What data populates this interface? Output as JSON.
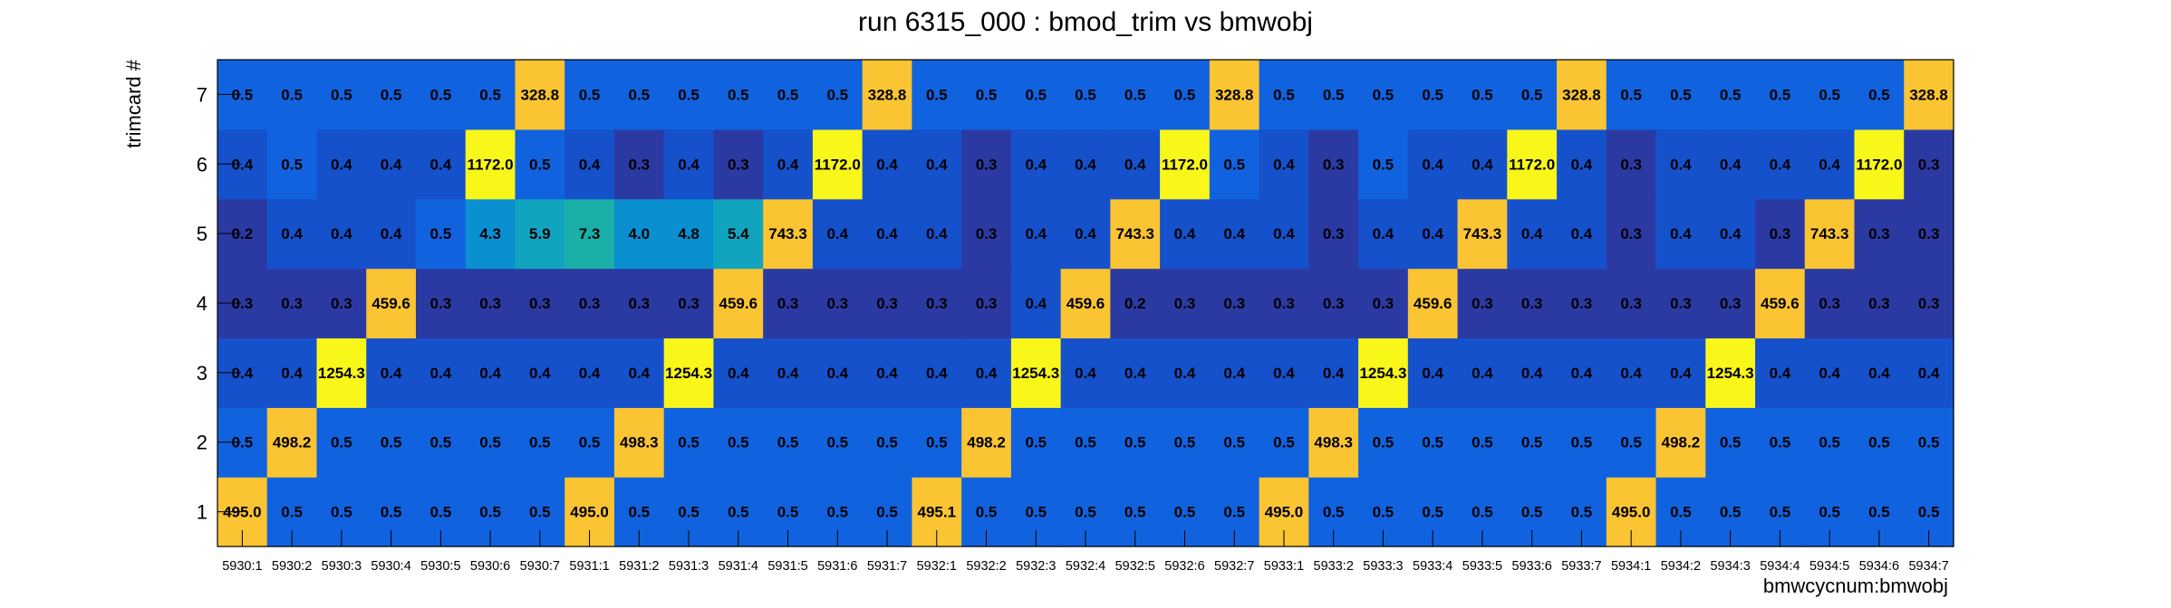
{
  "chart_data": {
    "type": "heatmap",
    "title": "run 6315_000 : bmod_trim vs bmwobj",
    "xlabel": "bmwcycnum:bmwobj",
    "ylabel": "trimcard #",
    "x_categories": [
      "5930:1",
      "5930:2",
      "5930:3",
      "5930:4",
      "5930:5",
      "5930:6",
      "5930:7",
      "5931:1",
      "5931:2",
      "5931:3",
      "5931:4",
      "5931:5",
      "5931:6",
      "5931:7",
      "5932:1",
      "5932:2",
      "5932:3",
      "5932:4",
      "5932:5",
      "5932:6",
      "5932:7",
      "5933:1",
      "5933:2",
      "5933:3",
      "5933:4",
      "5933:5",
      "5933:6",
      "5933:7",
      "5934:1",
      "5934:2",
      "5934:3",
      "5934:4",
      "5934:5",
      "5934:6",
      "5934:7"
    ],
    "y_categories": [
      "1",
      "2",
      "3",
      "4",
      "5",
      "6",
      "7"
    ],
    "values": [
      [
        "495.0",
        "0.5",
        "0.5",
        "0.5",
        "0.5",
        "0.5",
        "0.5",
        "495.0",
        "0.5",
        "0.5",
        "0.5",
        "0.5",
        "0.5",
        "0.5",
        "495.1",
        "0.5",
        "0.5",
        "0.5",
        "0.5",
        "0.5",
        "0.5",
        "495.0",
        "0.5",
        "0.5",
        "0.5",
        "0.5",
        "0.5",
        "0.5",
        "495.0",
        "0.5",
        "0.5",
        "0.5",
        "0.5",
        "0.5",
        "0.5"
      ],
      [
        "0.5",
        "498.2",
        "0.5",
        "0.5",
        "0.5",
        "0.5",
        "0.5",
        "0.5",
        "498.3",
        "0.5",
        "0.5",
        "0.5",
        "0.5",
        "0.5",
        "0.5",
        "498.2",
        "0.5",
        "0.5",
        "0.5",
        "0.5",
        "0.5",
        "0.5",
        "498.3",
        "0.5",
        "0.5",
        "0.5",
        "0.5",
        "0.5",
        "0.5",
        "498.2",
        "0.5",
        "0.5",
        "0.5",
        "0.5",
        "0.5"
      ],
      [
        "0.4",
        "0.4",
        "1254.3",
        "0.4",
        "0.4",
        "0.4",
        "0.4",
        "0.4",
        "0.4",
        "1254.3",
        "0.4",
        "0.4",
        "0.4",
        "0.4",
        "0.4",
        "0.4",
        "1254.3",
        "0.4",
        "0.4",
        "0.4",
        "0.4",
        "0.4",
        "0.4",
        "1254.3",
        "0.4",
        "0.4",
        "0.4",
        "0.4",
        "0.4",
        "0.4",
        "1254.3",
        "0.4",
        "0.4",
        "0.4",
        "0.4"
      ],
      [
        "0.3",
        "0.3",
        "0.3",
        "459.6",
        "0.3",
        "0.3",
        "0.3",
        "0.3",
        "0.3",
        "0.3",
        "459.6",
        "0.3",
        "0.3",
        "0.3",
        "0.3",
        "0.3",
        "0.4",
        "459.6",
        "0.2",
        "0.3",
        "0.3",
        "0.3",
        "0.3",
        "0.3",
        "459.6",
        "0.3",
        "0.3",
        "0.3",
        "0.3",
        "0.3",
        "0.3",
        "459.6",
        "0.3",
        "0.3",
        "0.3"
      ],
      [
        "0.2",
        "0.4",
        "0.4",
        "0.4",
        "0.5",
        "4.3",
        "5.9",
        "7.3",
        "4.0",
        "4.8",
        "5.4",
        "743.3",
        "0.4",
        "0.4",
        "0.4",
        "0.3",
        "0.4",
        "0.4",
        "743.3",
        "0.4",
        "0.4",
        "0.4",
        "0.3",
        "0.4",
        "0.4",
        "743.3",
        "0.4",
        "0.4",
        "0.3",
        "0.4",
        "0.4",
        "0.3",
        "743.3",
        "0.3",
        "0.3"
      ],
      [
        "0.4",
        "0.5",
        "0.4",
        "0.4",
        "0.4",
        "1172.0",
        "0.5",
        "0.4",
        "0.3",
        "0.4",
        "0.3",
        "0.4",
        "1172.0",
        "0.4",
        "0.4",
        "0.3",
        "0.4",
        "0.4",
        "0.4",
        "1172.0",
        "0.5",
        "0.4",
        "0.3",
        "0.5",
        "0.4",
        "0.4",
        "1172.0",
        "0.4",
        "0.3",
        "0.4",
        "0.4",
        "0.4",
        "0.4",
        "1172.0",
        "0.3"
      ],
      [
        "0.5",
        "0.5",
        "0.5",
        "0.5",
        "0.5",
        "0.5",
        "328.8",
        "0.5",
        "0.5",
        "0.5",
        "0.5",
        "0.5",
        "0.5",
        "328.8",
        "0.5",
        "0.5",
        "0.5",
        "0.5",
        "0.5",
        "0.5",
        "328.8",
        "0.5",
        "0.5",
        "0.5",
        "0.5",
        "0.5",
        "0.5",
        "328.8",
        "0.5",
        "0.5",
        "0.5",
        "0.5",
        "0.5",
        "0.5",
        "328.8"
      ]
    ],
    "colors": {
      "low_dark": "#2b3aa3",
      "base": "#1651cc",
      "base_light": "#1162de",
      "teal_1": "#0a8fd0",
      "teal_2": "#11a4bf",
      "teal_3": "#1ab0a8",
      "gold": "#fac432",
      "yellow": "#f9f71a",
      "frame": "#000000"
    },
    "grid": false,
    "legend": "none"
  }
}
